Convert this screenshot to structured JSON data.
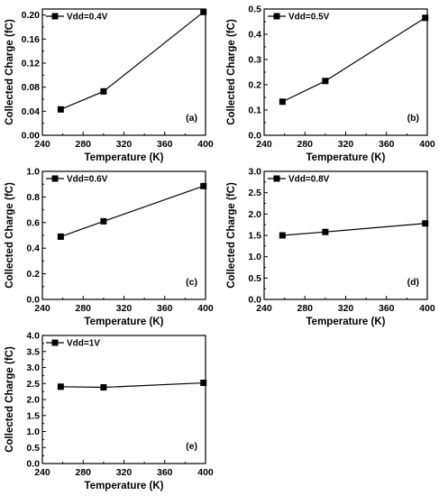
{
  "chart_data": [
    {
      "type": "line",
      "panel_label": "(a)",
      "x": [
        258,
        300,
        398
      ],
      "series": [
        {
          "name": "Vdd=0.4V",
          "values": [
            0.043,
            0.073,
            0.205
          ]
        }
      ],
      "xlabel": "Temperature (K)",
      "ylabel": "Collected Charge (fC)",
      "xlim": [
        240,
        400
      ],
      "ylim": [
        0,
        0.21
      ],
      "xticks": [
        "240",
        "280",
        "320",
        "360",
        "400"
      ],
      "xtick_values": [
        240,
        280,
        320,
        360,
        400
      ],
      "yticks": [
        "0.00",
        "0.04",
        "0.08",
        "0.12",
        "0.16",
        "0.20"
      ],
      "ytick_values": [
        0,
        0.04,
        0.08,
        0.12,
        0.16,
        0.2
      ],
      "legend": "top-left",
      "marker": "square",
      "grid": false
    },
    {
      "type": "line",
      "panel_label": "(b)",
      "x": [
        258,
        300,
        398
      ],
      "series": [
        {
          "name": "Vdd=0.5V",
          "values": [
            0.133,
            0.215,
            0.465
          ]
        }
      ],
      "xlabel": "Temperature (K)",
      "ylabel": "Collected Charge (fC)",
      "xlim": [
        240,
        400
      ],
      "ylim": [
        0,
        0.5
      ],
      "xticks": [
        "240",
        "280",
        "320",
        "360",
        "400"
      ],
      "xtick_values": [
        240,
        280,
        320,
        360,
        400
      ],
      "yticks": [
        "0.0",
        "0.1",
        "0.2",
        "0.3",
        "0.4",
        "0.5"
      ],
      "ytick_values": [
        0,
        0.1,
        0.2,
        0.3,
        0.4,
        0.5
      ],
      "legend": "top-left",
      "marker": "square",
      "grid": false
    },
    {
      "type": "line",
      "panel_label": "(c)",
      "x": [
        258,
        300,
        398
      ],
      "series": [
        {
          "name": "Vdd=0.6V",
          "values": [
            0.49,
            0.61,
            0.885
          ]
        }
      ],
      "xlabel": "Temperature (K)",
      "ylabel": "Collected Charge (fC)",
      "xlim": [
        240,
        400
      ],
      "ylim": [
        0,
        1.0
      ],
      "xticks": [
        "240",
        "280",
        "320",
        "360",
        "400"
      ],
      "xtick_values": [
        240,
        280,
        320,
        360,
        400
      ],
      "yticks": [
        "0.0",
        "0.2",
        "0.4",
        "0.6",
        "0.8",
        "1.0"
      ],
      "ytick_values": [
        0,
        0.2,
        0.4,
        0.6,
        0.8,
        1.0
      ],
      "legend": "top-left",
      "marker": "square",
      "grid": false
    },
    {
      "type": "line",
      "panel_label": "(d)",
      "x": [
        258,
        300,
        398
      ],
      "series": [
        {
          "name": "Vdd=0.8V",
          "values": [
            1.5,
            1.58,
            1.78
          ]
        }
      ],
      "xlabel": "Temperature (K)",
      "ylabel": "Collected Charge (fC)",
      "xlim": [
        240,
        400
      ],
      "ylim": [
        0,
        3.0
      ],
      "xticks": [
        "240",
        "280",
        "320",
        "360",
        "400"
      ],
      "xtick_values": [
        240,
        280,
        320,
        360,
        400
      ],
      "yticks": [
        "0.0",
        "0.5",
        "1.0",
        "1.5",
        "2.0",
        "2.5",
        "3.0"
      ],
      "ytick_values": [
        0,
        0.5,
        1.0,
        1.5,
        2.0,
        2.5,
        3.0
      ],
      "legend": "top-left",
      "marker": "square",
      "grid": false
    },
    {
      "type": "line",
      "panel_label": "(e)",
      "x": [
        258,
        300,
        398
      ],
      "series": [
        {
          "name": "Vdd=1V",
          "values": [
            2.4,
            2.38,
            2.52
          ]
        }
      ],
      "xlabel": "Temperature (K)",
      "ylabel": "Collected Charge (fC)",
      "xlim": [
        240,
        400
      ],
      "ylim": [
        0,
        4.0
      ],
      "xticks": [
        "240",
        "280",
        "320",
        "360",
        "400"
      ],
      "xtick_values": [
        240,
        280,
        320,
        360,
        400
      ],
      "yticks": [
        "0.0",
        "0.5",
        "1.0",
        "1.5",
        "2.0",
        "2.5",
        "3.0",
        "3.5",
        "4.0"
      ],
      "ytick_values": [
        0,
        0.5,
        1.0,
        1.5,
        2.0,
        2.5,
        3.0,
        3.5,
        4.0
      ],
      "legend": "top-left",
      "marker": "square",
      "grid": false
    }
  ]
}
